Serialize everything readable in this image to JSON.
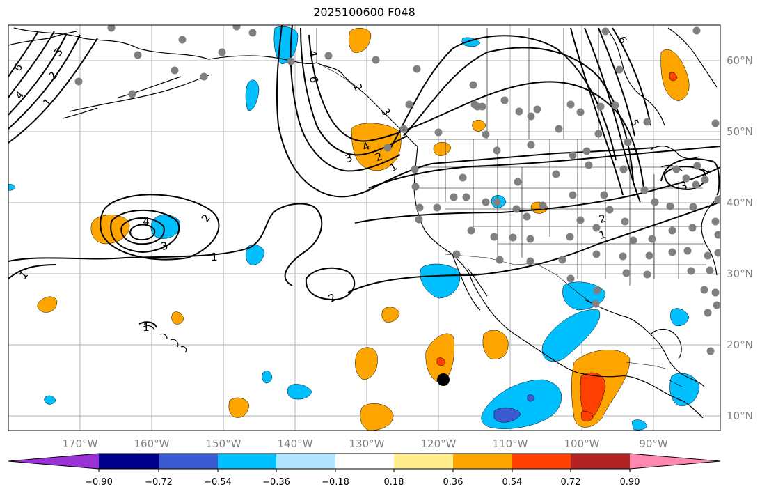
{
  "title": "2025100600 F048",
  "map": {
    "lat_labels": [
      "60°N",
      "50°N",
      "40°N",
      "30°N",
      "20°N",
      "10°N"
    ],
    "lon_labels": [
      "170°W",
      "160°W",
      "150°W",
      "140°W",
      "130°W",
      "120°W",
      "110°W",
      "100°W",
      "90°W"
    ],
    "contour_labels": [
      "1",
      "2",
      "3",
      "4",
      "6",
      "1",
      "2",
      "3",
      "4",
      "1",
      "2",
      "1",
      "2",
      "3",
      "4",
      "5",
      "6",
      "1",
      "2",
      "3",
      "1",
      "1",
      "2",
      "3",
      "4",
      "6"
    ],
    "colors": {
      "coast": "#000000",
      "grid": "#b0b0b0",
      "station": "#808080",
      "marker": "#000000"
    }
  },
  "colorbar": {
    "ticks": [
      "−0.90",
      "−0.72",
      "−0.54",
      "−0.36",
      "−0.18",
      "0.18",
      "0.36",
      "0.54",
      "0.72",
      "0.90"
    ],
    "colors": [
      "#9b32d8",
      "#00008b",
      "#3a5bd2",
      "#00bfff",
      "#b0e4ff",
      "#ffffff",
      "#ffec8a",
      "#ffa500",
      "#ff4000",
      "#b22222",
      "#ff88b0"
    ]
  }
}
